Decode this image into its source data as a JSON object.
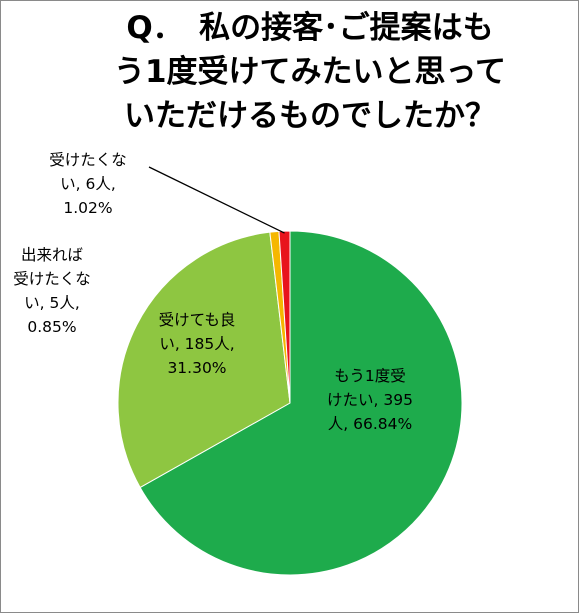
{
  "title_lines": [
    "Q．　私の接客･ご提案はも",
    "う1度受けてみたいと思って",
    "いただけるものでしたか？"
  ],
  "chart_data": {
    "type": "pie",
    "title": "Q．　私の接客･ご提案はもう1度受けてみたいと思っていただけるものでしたか？",
    "slices": [
      {
        "label": "もう1度受けたい",
        "count": 395,
        "unit": "人",
        "percent": 66.84,
        "color": "#1eab4c",
        "label_lines": [
          "もう1度受",
          "けたい, 395",
          "人, 66.84%"
        ]
      },
      {
        "label": "受けても良い",
        "count": 185,
        "unit": "人",
        "percent": 31.3,
        "color": "#8ec641",
        "label_lines": [
          "受けても良",
          "い, 185人,",
          "31.30%"
        ]
      },
      {
        "label": "出来れば受けたくない",
        "count": 5,
        "unit": "人",
        "percent": 0.85,
        "color": "#f5b700",
        "label_lines": [
          "出来れば",
          "受けたくな",
          "い, 5人,",
          "0.85%"
        ]
      },
      {
        "label": "受けたくない",
        "count": 6,
        "unit": "人",
        "percent": 1.02,
        "color": "#e8141c",
        "label_lines": [
          "受けたくな",
          "い, 6人,",
          "1.02%"
        ]
      }
    ],
    "start_angle": "12 o'clock",
    "direction": "clockwise",
    "legend": "none"
  }
}
